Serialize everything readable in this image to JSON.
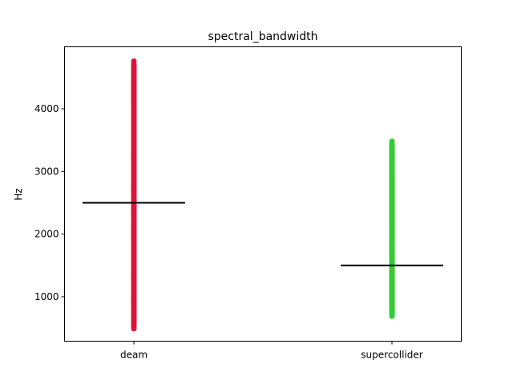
{
  "chart_data": {
    "type": "scatter",
    "title": "spectral_bandwidth",
    "xlabel": "",
    "ylabel": "Hz",
    "categories": [
      "deam",
      "supercollider"
    ],
    "ylim": [
      290,
      4990
    ],
    "yticks": [
      1000,
      2000,
      3000,
      4000
    ],
    "grid": false,
    "series": [
      {
        "category": "deam",
        "color": "#dc143c",
        "mean": 2500,
        "range": [
          490,
          4760
        ],
        "points": [
          490,
          520,
          560,
          610,
          680,
          760,
          850,
          950,
          1050,
          1150,
          1250,
          1350,
          1450,
          1550,
          1650,
          1750,
          1850,
          1950,
          2050,
          2150,
          2250,
          2350,
          2450,
          2550,
          2650,
          2750,
          2850,
          2950,
          3050,
          3150,
          3250,
          3350,
          3450,
          3550,
          3650,
          3750,
          3850,
          3950,
          4050,
          4100,
          4170,
          4230,
          4290,
          4340,
          4380,
          4420,
          4460,
          4500,
          4540,
          4580,
          4620,
          4660,
          4760
        ]
      },
      {
        "category": "supercollider",
        "color": "#32cd32",
        "mean": 1500,
        "range": [
          690,
          3480
        ],
        "points": [
          690,
          720,
          760,
          800,
          850,
          900,
          950,
          1000,
          1060,
          1120,
          1180,
          1240,
          1300,
          1360,
          1420,
          1480,
          1540,
          1600,
          1660,
          1720,
          1780,
          1840,
          1900,
          1960,
          2020,
          2080,
          2140,
          2200,
          2260,
          2300,
          2410,
          2460,
          2530,
          2580,
          2660,
          2720,
          2810,
          2990,
          3030,
          3110,
          3220,
          3360,
          3480
        ]
      }
    ]
  }
}
